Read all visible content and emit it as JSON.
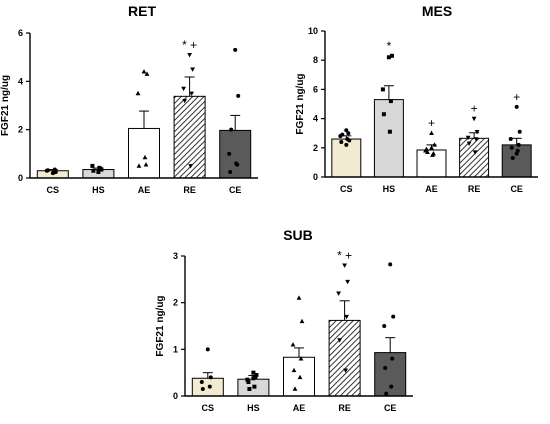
{
  "chart_data": [
    {
      "type": "bar",
      "title": "RET",
      "ylabel": "FGF21 ng/ug",
      "ylim": [
        0,
        6
      ],
      "yticks": [
        0,
        2,
        4,
        6
      ],
      "categories": [
        "CS",
        "HS",
        "AE",
        "RE",
        "CE"
      ],
      "values": [
        0.3,
        0.35,
        2.05,
        3.38,
        1.97
      ],
      "errors": [
        0.05,
        0.06,
        0.72,
        0.8,
        0.62
      ],
      "points": [
        [
          0.2,
          0.25,
          0.3,
          0.35,
          0.32,
          0.22
        ],
        [
          0.25,
          0.35,
          0.5,
          0.38,
          0.3,
          0.42
        ],
        [
          4.4,
          4.3,
          3.5,
          0.55,
          0.5,
          0.85
        ],
        [
          5.1,
          4.5,
          3.7,
          3.5,
          3.2,
          0.5
        ],
        [
          5.3,
          3.4,
          1.0,
          0.55,
          0.25,
          0.6,
          2.0
        ]
      ],
      "annotations": [
        {
          "category": "RE",
          "text": "* +"
        }
      ]
    },
    {
      "type": "bar",
      "title": "MES",
      "ylabel": "FGF21 ng/ug",
      "ylim": [
        0,
        10
      ],
      "yticks": [
        0,
        2,
        4,
        6,
        8,
        10
      ],
      "categories": [
        "CS",
        "HS",
        "AE",
        "RE",
        "CE"
      ],
      "values": [
        2.6,
        5.3,
        1.85,
        2.65,
        2.2
      ],
      "errors": [
        0.22,
        0.95,
        0.35,
        0.38,
        0.45
      ],
      "points": [
        [
          2.2,
          2.5,
          2.8,
          3.0,
          2.4,
          2.6,
          2.9,
          3.2
        ],
        [
          8.2,
          8.3,
          6.0,
          5.2,
          4.3,
          3.1
        ],
        [
          3.0,
          2.2,
          1.8,
          1.6,
          1.9,
          1.5,
          1.7,
          2.0
        ],
        [
          4.0,
          3.1,
          2.7,
          2.6,
          2.3,
          1.7
        ],
        [
          4.8,
          3.1,
          2.6,
          2.2,
          2.0,
          1.8,
          1.3,
          1.6
        ]
      ],
      "annotations": [
        {
          "category": "HS",
          "text": "*"
        },
        {
          "category": "AE",
          "text": "+"
        },
        {
          "category": "RE",
          "text": "+"
        },
        {
          "category": "CE",
          "text": "+"
        }
      ]
    },
    {
      "type": "bar",
      "title": "SUB",
      "ylabel": "FGF21 ng/ug",
      "ylim": [
        0,
        3
      ],
      "yticks": [
        0,
        1,
        2,
        3
      ],
      "categories": [
        "CS",
        "HS",
        "AE",
        "RE",
        "CE"
      ],
      "values": [
        0.38,
        0.36,
        0.83,
        1.62,
        0.93
      ],
      "errors": [
        0.12,
        0.08,
        0.2,
        0.42,
        0.32
      ],
      "points": [
        [
          1.0,
          0.4,
          0.3,
          0.2,
          0.15
        ],
        [
          0.5,
          0.45,
          0.35,
          0.4,
          0.3,
          0.2,
          0.15,
          0.38
        ],
        [
          2.1,
          1.6,
          1.1,
          0.8,
          0.55,
          0.4,
          0.15
        ],
        [
          2.8,
          2.45,
          2.2,
          1.7,
          1.2,
          0.55
        ],
        [
          2.82,
          1.7,
          1.5,
          0.8,
          0.6,
          0.2,
          0.05
        ]
      ],
      "annotations": [
        {
          "category": "RE",
          "text": "* +"
        }
      ]
    }
  ]
}
